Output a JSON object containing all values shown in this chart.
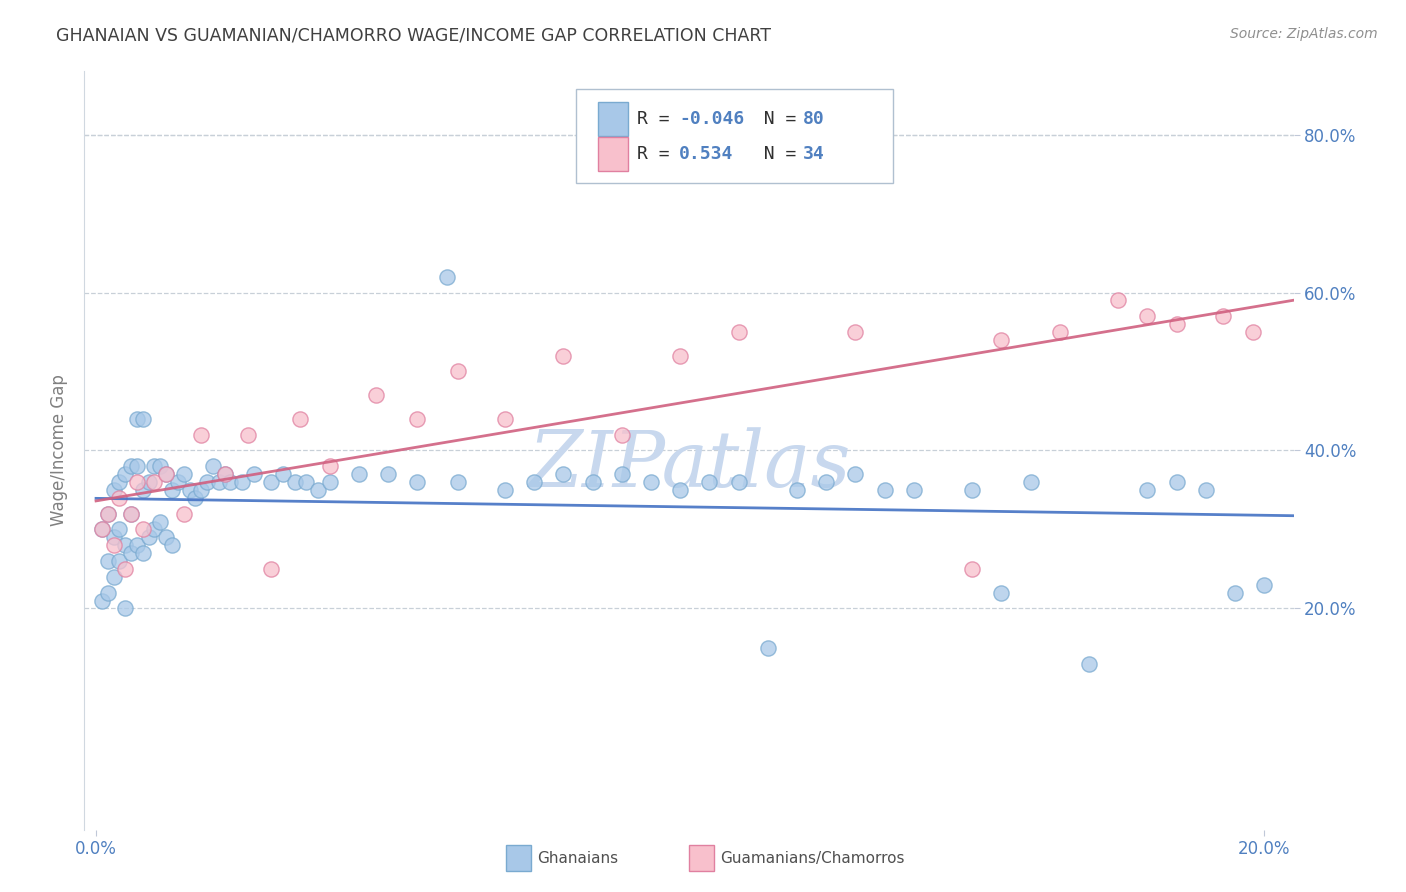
{
  "title": "GHANAIAN VS GUAMANIAN/CHAMORRO WAGE/INCOME GAP CORRELATION CHART",
  "source": "Source: ZipAtlas.com",
  "ylabel": "Wage/Income Gap",
  "xlim": [
    -0.002,
    0.205
  ],
  "ylim": [
    -0.08,
    0.88
  ],
  "ytick_labels": [
    "20.0%",
    "40.0%",
    "60.0%",
    "80.0%"
  ],
  "ytick_values": [
    0.2,
    0.4,
    0.6,
    0.8
  ],
  "xtick_labels": [
    "0.0%",
    "20.0%"
  ],
  "xtick_values": [
    0.0,
    0.2
  ],
  "series1_name": "Ghanaians",
  "series1_color": "#a8c8e8",
  "series1_edge_color": "#7aaad0",
  "series1_line_color": "#4472c4",
  "series1_R": -0.046,
  "series1_N": 80,
  "series2_name": "Guamanians/Chamorros",
  "series2_color": "#f8c0cc",
  "series2_edge_color": "#e080a0",
  "series2_line_color": "#d06080",
  "series2_R": 0.534,
  "series2_N": 34,
  "watermark": "ZIPatlas",
  "watermark_color": "#c8d8ee",
  "background_color": "#ffffff",
  "grid_color": "#c8d0d8",
  "title_color": "#404040",
  "axis_tick_color": "#5080c0",
  "legend_text_color_label": "#303030",
  "legend_text_color_value": "#5080c0",
  "ghanaian_x": [
    0.001,
    0.001,
    0.002,
    0.002,
    0.002,
    0.003,
    0.003,
    0.003,
    0.004,
    0.004,
    0.004,
    0.005,
    0.005,
    0.005,
    0.006,
    0.006,
    0.006,
    0.007,
    0.007,
    0.007,
    0.008,
    0.008,
    0.008,
    0.009,
    0.009,
    0.01,
    0.01,
    0.011,
    0.011,
    0.012,
    0.012,
    0.013,
    0.013,
    0.014,
    0.015,
    0.016,
    0.017,
    0.018,
    0.019,
    0.02,
    0.021,
    0.022,
    0.023,
    0.025,
    0.027,
    0.03,
    0.032,
    0.034,
    0.036,
    0.038,
    0.04,
    0.045,
    0.05,
    0.055,
    0.06,
    0.062,
    0.07,
    0.075,
    0.08,
    0.085,
    0.09,
    0.095,
    0.1,
    0.105,
    0.11,
    0.115,
    0.12,
    0.125,
    0.13,
    0.135,
    0.14,
    0.15,
    0.155,
    0.16,
    0.17,
    0.18,
    0.185,
    0.19,
    0.195,
    0.2
  ],
  "ghanaian_y": [
    0.3,
    0.21,
    0.32,
    0.26,
    0.22,
    0.35,
    0.29,
    0.24,
    0.36,
    0.3,
    0.26,
    0.37,
    0.28,
    0.2,
    0.38,
    0.32,
    0.27,
    0.44,
    0.38,
    0.28,
    0.44,
    0.35,
    0.27,
    0.36,
    0.29,
    0.38,
    0.3,
    0.38,
    0.31,
    0.37,
    0.29,
    0.35,
    0.28,
    0.36,
    0.37,
    0.35,
    0.34,
    0.35,
    0.36,
    0.38,
    0.36,
    0.37,
    0.36,
    0.36,
    0.37,
    0.36,
    0.37,
    0.36,
    0.36,
    0.35,
    0.36,
    0.37,
    0.37,
    0.36,
    0.62,
    0.36,
    0.35,
    0.36,
    0.37,
    0.36,
    0.37,
    0.36,
    0.35,
    0.36,
    0.36,
    0.15,
    0.35,
    0.36,
    0.37,
    0.35,
    0.35,
    0.35,
    0.22,
    0.36,
    0.13,
    0.35,
    0.36,
    0.35,
    0.22,
    0.23
  ],
  "guamanian_x": [
    0.001,
    0.002,
    0.003,
    0.004,
    0.005,
    0.006,
    0.007,
    0.008,
    0.01,
    0.012,
    0.015,
    0.018,
    0.022,
    0.026,
    0.03,
    0.035,
    0.04,
    0.048,
    0.055,
    0.062,
    0.07,
    0.08,
    0.09,
    0.1,
    0.11,
    0.13,
    0.15,
    0.155,
    0.165,
    0.175,
    0.18,
    0.185,
    0.193,
    0.198
  ],
  "guamanian_y": [
    0.3,
    0.32,
    0.28,
    0.34,
    0.25,
    0.32,
    0.36,
    0.3,
    0.36,
    0.37,
    0.32,
    0.42,
    0.37,
    0.42,
    0.25,
    0.44,
    0.38,
    0.47,
    0.44,
    0.5,
    0.44,
    0.52,
    0.42,
    0.52,
    0.55,
    0.55,
    0.25,
    0.54,
    0.55,
    0.59,
    0.57,
    0.56,
    0.57,
    0.55
  ]
}
